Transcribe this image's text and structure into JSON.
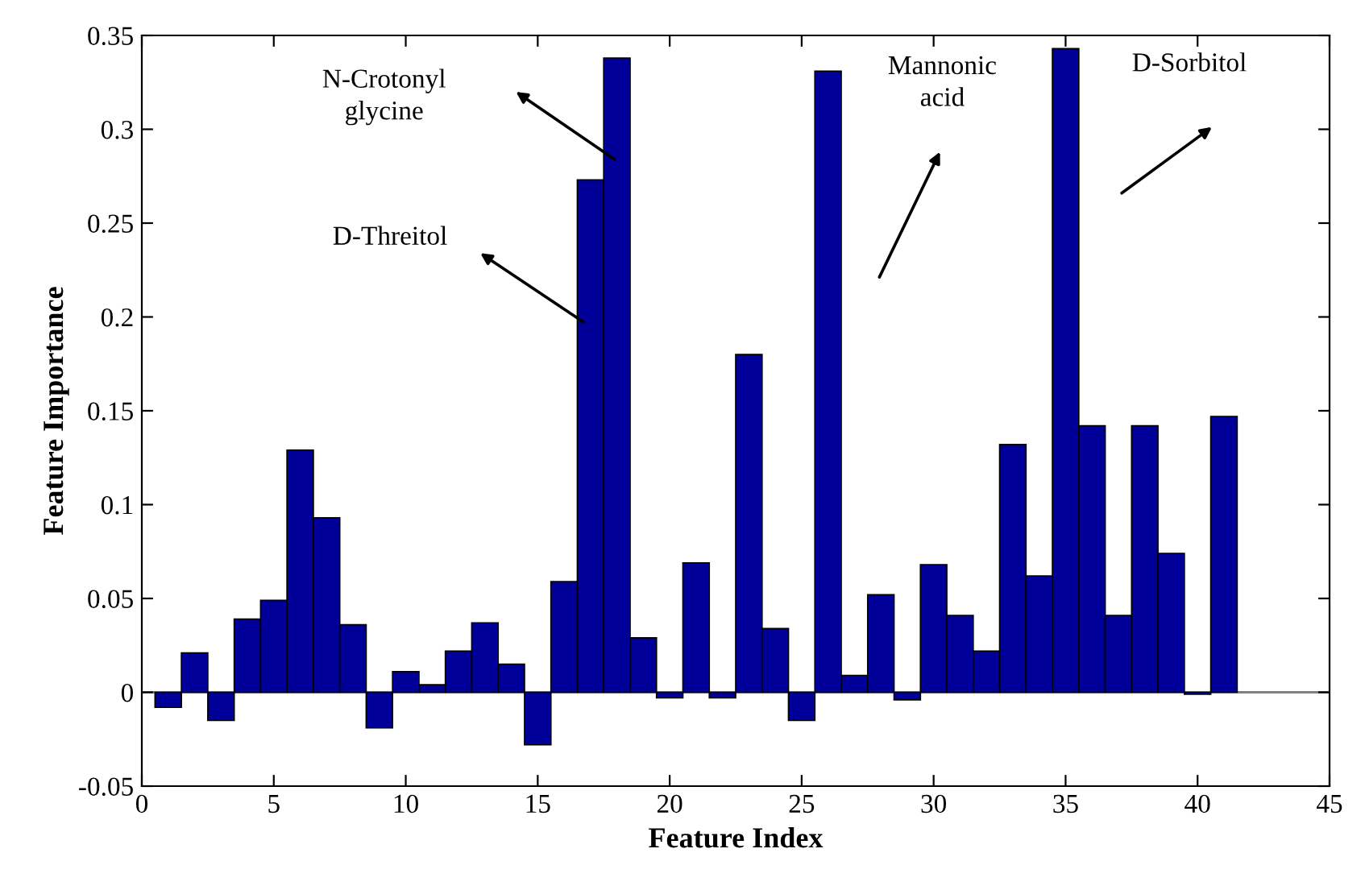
{
  "chart_data": {
    "type": "bar",
    "xlabel": "Feature Index",
    "ylabel": "Feature Importance",
    "x": [
      1,
      2,
      3,
      4,
      5,
      6,
      7,
      8,
      9,
      10,
      11,
      12,
      13,
      14,
      15,
      16,
      17,
      18,
      19,
      20,
      21,
      22,
      23,
      24,
      25,
      26,
      27,
      28,
      29,
      30,
      31,
      32,
      33,
      34,
      35,
      36,
      37,
      38,
      39,
      40,
      41
    ],
    "values": [
      -0.008,
      0.021,
      -0.015,
      0.039,
      0.049,
      0.129,
      0.093,
      0.036,
      -0.019,
      0.011,
      0.004,
      0.022,
      0.037,
      0.015,
      -0.028,
      0.059,
      0.273,
      0.338,
      0.029,
      -0.003,
      0.069,
      -0.003,
      0.18,
      0.034,
      -0.015,
      0.331,
      0.009,
      0.052,
      -0.004,
      0.068,
      0.041,
      0.022,
      0.132,
      0.062,
      0.343,
      0.142,
      0.041,
      0.142,
      0.074,
      -0.001,
      0.147
    ],
    "color": "#000099",
    "xlim": [
      0,
      45
    ],
    "xticks": [
      0,
      5,
      10,
      15,
      20,
      25,
      30,
      35,
      40,
      45
    ],
    "ylim": [
      -0.05,
      0.35
    ],
    "yticks": [
      -0.05,
      0,
      0.05,
      0.1,
      0.15,
      0.2,
      0.25,
      0.3,
      0.35
    ],
    "grid": false,
    "ref_lines": [
      {
        "axis": "y",
        "value": 0,
        "color": "#808080"
      }
    ],
    "annotations": [
      "N-Crotonyl\nglycine",
      "D-Threitol",
      "Mannonic\nacid",
      "D-Sorbitol"
    ]
  }
}
